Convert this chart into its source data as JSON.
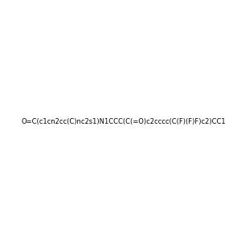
{
  "smiles": "O=C(c1cn2cc(C)nc2s1)N1CCC(C(=O)c2cccc(C(F)(F)F)c2)CC1",
  "image_size": 300,
  "background_color": "#efefef",
  "atom_colors": {
    "F": "#ff00ff",
    "N": "#0000ff",
    "O": "#ff0000",
    "S": "#cccc00"
  },
  "title": "",
  "dpi": 100,
  "figsize": [
    3.0,
    3.0
  ]
}
